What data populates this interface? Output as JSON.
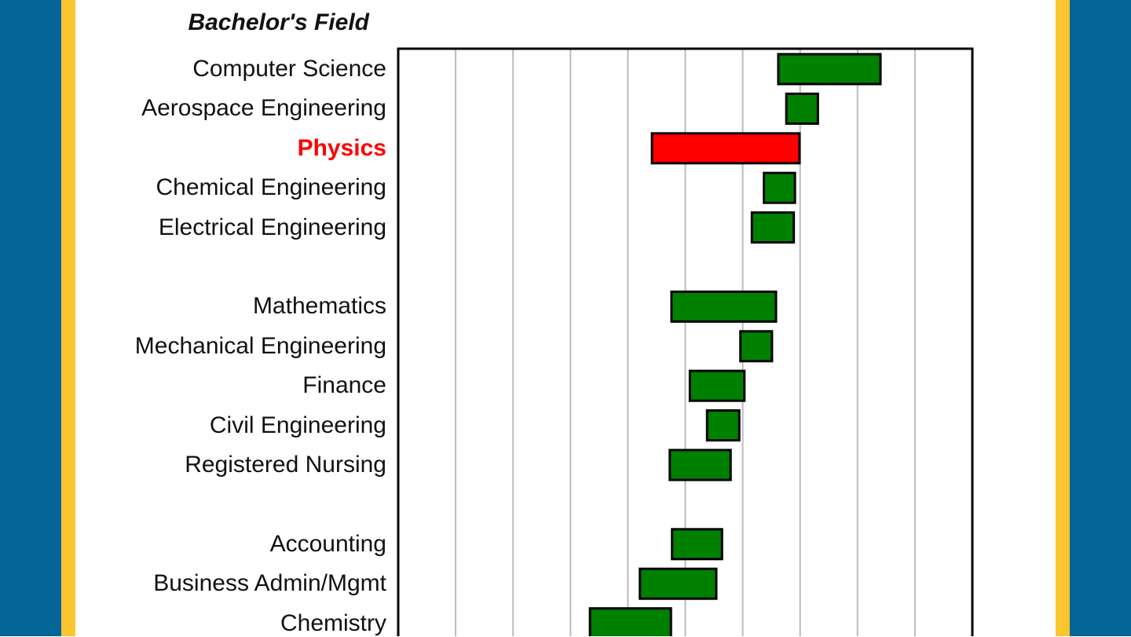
{
  "frame": {
    "outer_color": "#046397",
    "accent_color": "#FBC52F"
  },
  "chart_data": {
    "type": "bar",
    "orientation": "horizontal",
    "subtype": "floating-range",
    "title": "Bachelor's Field",
    "xlabel": "",
    "ylabel": "",
    "xlim": [
      0,
      10
    ],
    "grid": true,
    "x_tick_labels_visible": false,
    "categories": [
      "Computer Science",
      "Aerospace Engineering",
      "Physics",
      "Chemical Engineering",
      "Electrical Engineering",
      "Mathematics",
      "Mechanical Engineering",
      "Finance",
      "Civil Engineering",
      "Registered Nursing",
      "Accounting",
      "Business Admin/Mgmt",
      "Chemistry"
    ],
    "groups_after": [
      4,
      9
    ],
    "highlighted": "Physics",
    "ranges": [
      [
        6.62,
        8.4
      ],
      [
        6.76,
        7.31
      ],
      [
        4.42,
        6.99
      ],
      [
        6.37,
        6.91
      ],
      [
        6.16,
        6.89
      ],
      [
        4.76,
        6.58
      ],
      [
        5.96,
        6.51
      ],
      [
        5.08,
        6.03
      ],
      [
        5.38,
        5.94
      ],
      [
        4.73,
        5.79
      ],
      [
        4.77,
        5.64
      ],
      [
        4.21,
        5.54
      ],
      [
        3.34,
        4.75
      ]
    ],
    "colors": {
      "default": "#008000",
      "highlight": "#ff0000",
      "border": "#000000",
      "grid": "#bbbbbb"
    }
  }
}
